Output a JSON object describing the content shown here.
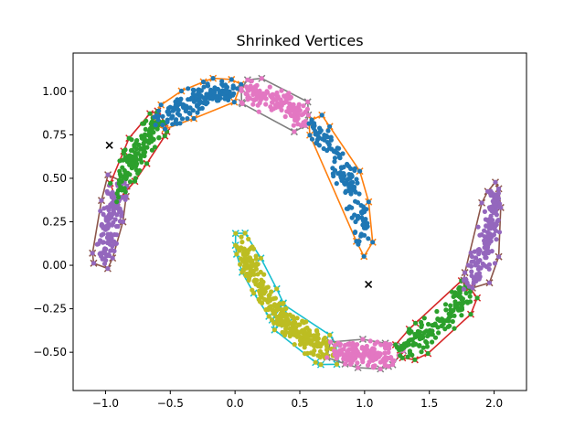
{
  "chart_data": {
    "type": "scatter",
    "title": "Shrinked Vertices",
    "xlabel": "",
    "ylabel": "",
    "xlim": [
      -1.25,
      2.25
    ],
    "ylim": [
      -0.72,
      1.22
    ],
    "grid": false,
    "x_ticks": [
      {
        "value": -1.0,
        "label": "−1.0"
      },
      {
        "value": -0.5,
        "label": "−0.5"
      },
      {
        "value": 0.0,
        "label": "0.0"
      },
      {
        "value": 0.5,
        "label": "0.5"
      },
      {
        "value": 1.0,
        "label": "1.0"
      },
      {
        "value": 1.5,
        "label": "1.5"
      },
      {
        "value": 2.0,
        "label": "2.0"
      }
    ],
    "y_ticks": [
      {
        "value": -0.5,
        "label": "−0.50"
      },
      {
        "value": -0.25,
        "label": "−0.25"
      },
      {
        "value": 0.0,
        "label": "0.00"
      },
      {
        "value": 0.25,
        "label": "0.25"
      },
      {
        "value": 0.5,
        "label": "0.50"
      },
      {
        "value": 0.75,
        "label": "0.75"
      },
      {
        "value": 1.0,
        "label": "1.00"
      }
    ],
    "clusters": [
      {
        "color": "#9467bd",
        "hull_color": "#8c564b",
        "t_range": [
          0.04,
          0.3
        ]
      },
      {
        "color": "#2ca02c",
        "hull_color": "#d62728",
        "t_range": [
          0.3,
          0.62
        ]
      },
      {
        "color": "#1f77b4",
        "hull_color": "#ff7f0e",
        "t_range": [
          0.64,
          1.02
        ]
      },
      {
        "color": "#e377c2",
        "hull_color": "#7f7f7f",
        "t_range": [
          1.08,
          1.38
        ]
      },
      {
        "color": "#1f77b4",
        "hull_color": "#ff7f0e",
        "t_range": [
          1.42,
          1.95
        ]
      }
    ],
    "clusters_lower": [
      {
        "color": "#bcbd22",
        "hull_color": "#17becf",
        "t_range": [
          -0.05,
          0.55
        ]
      },
      {
        "color": "#bcbd22",
        "hull_color": "#17becf",
        "t_range": [
          0.55,
          1.02
        ]
      },
      {
        "color": "#e377c2",
        "hull_color": "#7f7f7f",
        "t_range": [
          1.05,
          1.55
        ]
      },
      {
        "color": "#2ca02c",
        "hull_color": "#d62728",
        "t_range": [
          1.58,
          2.25
        ]
      },
      {
        "color": "#9467bd",
        "hull_color": "#8c564b",
        "t_range": [
          2.28,
          2.95
        ]
      }
    ],
    "outliers": [
      {
        "x": -0.97,
        "y": 0.69
      },
      {
        "x": 1.03,
        "y": -0.11
      }
    ]
  }
}
